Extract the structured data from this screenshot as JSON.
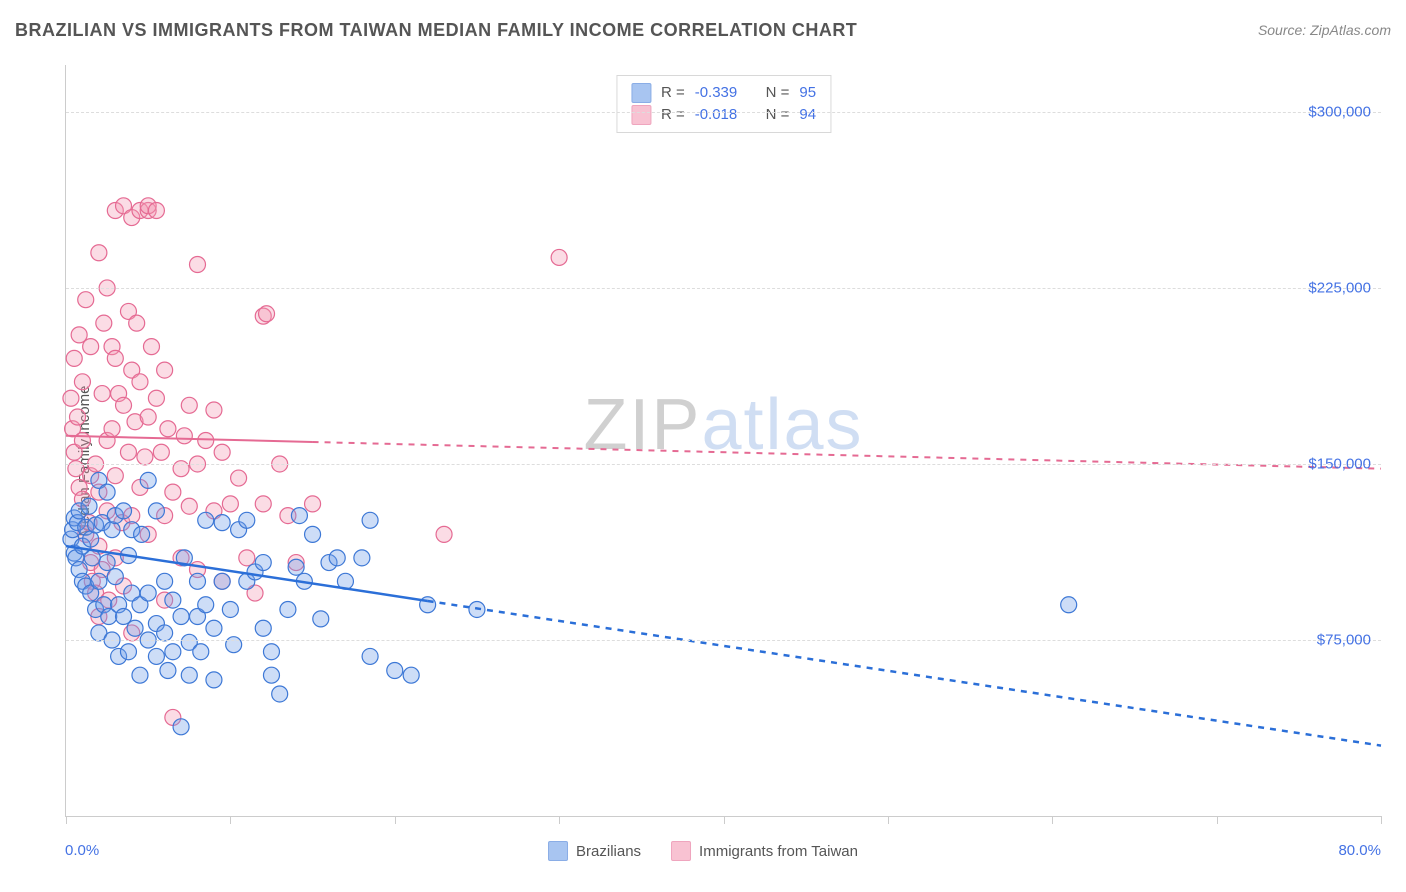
{
  "header": {
    "title": "BRAZILIAN VS IMMIGRANTS FROM TAIWAN MEDIAN FAMILY INCOME CORRELATION CHART",
    "source_label": "Source:",
    "source_name": "ZipAtlas.com"
  },
  "watermark": {
    "part1": "ZIP",
    "part2": "atlas"
  },
  "chart": {
    "type": "scatter",
    "ylabel": "Median Family Income",
    "background_color": "#ffffff",
    "grid_color": "#dddddd",
    "axis_color": "#cccccc",
    "accent_text_color": "#4472e4",
    "label_text_color": "#555555",
    "title_fontsize": 18,
    "label_fontsize": 15,
    "xaxis": {
      "min": 0,
      "max": 80,
      "tick_positions": [
        0,
        10,
        20,
        30,
        40,
        50,
        60,
        70,
        80
      ],
      "min_label": "0.0%",
      "max_label": "80.0%"
    },
    "yaxis": {
      "min": 0,
      "max": 320000,
      "ticks": [
        {
          "value": 75000,
          "label": "$75,000"
        },
        {
          "value": 150000,
          "label": "$150,000"
        },
        {
          "value": 225000,
          "label": "$225,000"
        },
        {
          "value": 300000,
          "label": "$300,000"
        }
      ]
    },
    "series": [
      {
        "id": "brazilians",
        "label": "Brazilians",
        "fill_color": "#6f9fe8",
        "fill_opacity": 0.35,
        "stroke_color": "#3d78d6",
        "stroke_width": 1.2,
        "marker_radius": 8,
        "R": "-0.339",
        "N": "95",
        "trend": {
          "y_at_xmin": 115000,
          "y_at_xmax": 30000,
          "solid_until_x": 22,
          "line_color": "#2b6fd8",
          "line_width": 2.5
        },
        "points": [
          [
            0.3,
            118000
          ],
          [
            0.4,
            122000
          ],
          [
            0.5,
            127000
          ],
          [
            0.5,
            112000
          ],
          [
            0.6,
            110000
          ],
          [
            0.7,
            125000
          ],
          [
            0.8,
            105000
          ],
          [
            0.8,
            130000
          ],
          [
            1.0,
            115000
          ],
          [
            1.0,
            100000
          ],
          [
            1.2,
            123000
          ],
          [
            1.2,
            98000
          ],
          [
            1.4,
            132000
          ],
          [
            1.5,
            118000
          ],
          [
            1.5,
            95000
          ],
          [
            1.6,
            110000
          ],
          [
            1.8,
            124000
          ],
          [
            1.8,
            88000
          ],
          [
            2.0,
            143000
          ],
          [
            2.0,
            100000
          ],
          [
            2.0,
            78000
          ],
          [
            2.2,
            125000
          ],
          [
            2.3,
            90000
          ],
          [
            2.5,
            138000
          ],
          [
            2.5,
            108000
          ],
          [
            2.6,
            85000
          ],
          [
            2.8,
            122000
          ],
          [
            2.8,
            75000
          ],
          [
            3.0,
            128000
          ],
          [
            3.0,
            102000
          ],
          [
            3.2,
            90000
          ],
          [
            3.2,
            68000
          ],
          [
            3.5,
            130000
          ],
          [
            3.5,
            85000
          ],
          [
            3.8,
            111000
          ],
          [
            3.8,
            70000
          ],
          [
            4.0,
            122000
          ],
          [
            4.0,
            95000
          ],
          [
            4.2,
            80000
          ],
          [
            4.5,
            90000
          ],
          [
            4.5,
            60000
          ],
          [
            4.6,
            120000
          ],
          [
            5.0,
            95000
          ],
          [
            5.0,
            75000
          ],
          [
            5.0,
            143000
          ],
          [
            5.5,
            82000
          ],
          [
            5.5,
            68000
          ],
          [
            5.5,
            130000
          ],
          [
            6.0,
            100000
          ],
          [
            6.0,
            78000
          ],
          [
            6.2,
            62000
          ],
          [
            6.5,
            92000
          ],
          [
            6.5,
            70000
          ],
          [
            7.0,
            38000
          ],
          [
            7.0,
            85000
          ],
          [
            7.2,
            110000
          ],
          [
            7.5,
            74000
          ],
          [
            7.5,
            60000
          ],
          [
            8.0,
            100000
          ],
          [
            8.0,
            85000
          ],
          [
            8.2,
            70000
          ],
          [
            8.5,
            90000
          ],
          [
            8.5,
            126000
          ],
          [
            9.0,
            80000
          ],
          [
            9.0,
            58000
          ],
          [
            9.5,
            100000
          ],
          [
            9.5,
            125000
          ],
          [
            10.0,
            88000
          ],
          [
            10.2,
            73000
          ],
          [
            10.5,
            122000
          ],
          [
            11.0,
            126000
          ],
          [
            11.0,
            100000
          ],
          [
            11.5,
            104000
          ],
          [
            12.0,
            108000
          ],
          [
            12.0,
            80000
          ],
          [
            12.5,
            70000
          ],
          [
            12.5,
            60000
          ],
          [
            13.0,
            52000
          ],
          [
            13.5,
            88000
          ],
          [
            14.0,
            106000
          ],
          [
            14.2,
            128000
          ],
          [
            14.5,
            100000
          ],
          [
            15.0,
            120000
          ],
          [
            15.5,
            84000
          ],
          [
            16.0,
            108000
          ],
          [
            16.5,
            110000
          ],
          [
            17.0,
            100000
          ],
          [
            18.0,
            110000
          ],
          [
            18.5,
            68000
          ],
          [
            18.5,
            126000
          ],
          [
            20.0,
            62000
          ],
          [
            21.0,
            60000
          ],
          [
            22.0,
            90000
          ],
          [
            25.0,
            88000
          ],
          [
            61.0,
            90000
          ]
        ]
      },
      {
        "id": "taiwan",
        "label": "Immigrants from Taiwan",
        "fill_color": "#f49ab5",
        "fill_opacity": 0.35,
        "stroke_color": "#e56a93",
        "stroke_width": 1.2,
        "marker_radius": 8,
        "R": "-0.018",
        "N": "94",
        "trend": {
          "y_at_xmin": 162000,
          "y_at_xmax": 148000,
          "solid_until_x": 15,
          "line_color": "#e56a93",
          "line_width": 2
        },
        "points": [
          [
            0.3,
            178000
          ],
          [
            0.4,
            165000
          ],
          [
            0.5,
            155000
          ],
          [
            0.5,
            195000
          ],
          [
            0.6,
            148000
          ],
          [
            0.7,
            170000
          ],
          [
            0.8,
            140000
          ],
          [
            0.8,
            205000
          ],
          [
            1.0,
            160000
          ],
          [
            1.0,
            135000
          ],
          [
            1.0,
            185000
          ],
          [
            1.2,
            120000
          ],
          [
            1.2,
            220000
          ],
          [
            1.4,
            125000
          ],
          [
            1.5,
            108000
          ],
          [
            1.5,
            200000
          ],
          [
            1.5,
            145000
          ],
          [
            1.6,
            100000
          ],
          [
            1.8,
            95000
          ],
          [
            1.8,
            150000
          ],
          [
            2.0,
            240000
          ],
          [
            2.0,
            138000
          ],
          [
            2.0,
            115000
          ],
          [
            2.0,
            85000
          ],
          [
            2.2,
            180000
          ],
          [
            2.2,
            105000
          ],
          [
            2.3,
            210000
          ],
          [
            2.5,
            225000
          ],
          [
            2.5,
            160000
          ],
          [
            2.5,
            130000
          ],
          [
            2.6,
            92000
          ],
          [
            2.8,
            200000
          ],
          [
            2.8,
            165000
          ],
          [
            3.0,
            195000
          ],
          [
            3.0,
            258000
          ],
          [
            3.0,
            110000
          ],
          [
            3.0,
            145000
          ],
          [
            3.2,
            180000
          ],
          [
            3.4,
            125000
          ],
          [
            3.5,
            260000
          ],
          [
            3.5,
            175000
          ],
          [
            3.5,
            98000
          ],
          [
            3.8,
            215000
          ],
          [
            3.8,
            155000
          ],
          [
            4.0,
            255000
          ],
          [
            4.0,
            190000
          ],
          [
            4.0,
            128000
          ],
          [
            4.0,
            78000
          ],
          [
            4.2,
            168000
          ],
          [
            4.3,
            210000
          ],
          [
            4.5,
            258000
          ],
          [
            4.5,
            185000
          ],
          [
            4.5,
            140000
          ],
          [
            4.8,
            153000
          ],
          [
            5.0,
            258000
          ],
          [
            5.0,
            260000
          ],
          [
            5.0,
            170000
          ],
          [
            5.0,
            120000
          ],
          [
            5.2,
            200000
          ],
          [
            5.5,
            258000
          ],
          [
            5.5,
            178000
          ],
          [
            5.8,
            155000
          ],
          [
            6.0,
            190000
          ],
          [
            6.0,
            128000
          ],
          [
            6.0,
            92000
          ],
          [
            6.2,
            165000
          ],
          [
            6.5,
            138000
          ],
          [
            6.5,
            42000
          ],
          [
            7.0,
            110000
          ],
          [
            7.0,
            148000
          ],
          [
            7.2,
            162000
          ],
          [
            7.5,
            132000
          ],
          [
            7.5,
            175000
          ],
          [
            8.0,
            235000
          ],
          [
            8.0,
            150000
          ],
          [
            8.0,
            105000
          ],
          [
            8.5,
            160000
          ],
          [
            9.0,
            130000
          ],
          [
            9.0,
            173000
          ],
          [
            9.5,
            100000
          ],
          [
            9.5,
            155000
          ],
          [
            10.0,
            133000
          ],
          [
            10.5,
            144000
          ],
          [
            11.0,
            110000
          ],
          [
            11.5,
            95000
          ],
          [
            12.0,
            213000
          ],
          [
            12.0,
            133000
          ],
          [
            12.2,
            214000
          ],
          [
            13.0,
            150000
          ],
          [
            13.5,
            128000
          ],
          [
            14.0,
            108000
          ],
          [
            15.0,
            133000
          ],
          [
            23.0,
            120000
          ],
          [
            30.0,
            238000
          ]
        ]
      }
    ],
    "legend_bottom": {
      "items": [
        {
          "series": "brazilians"
        },
        {
          "series": "taiwan"
        }
      ]
    },
    "stat_box": {
      "R_label": "R =",
      "N_label": "N ="
    }
  }
}
